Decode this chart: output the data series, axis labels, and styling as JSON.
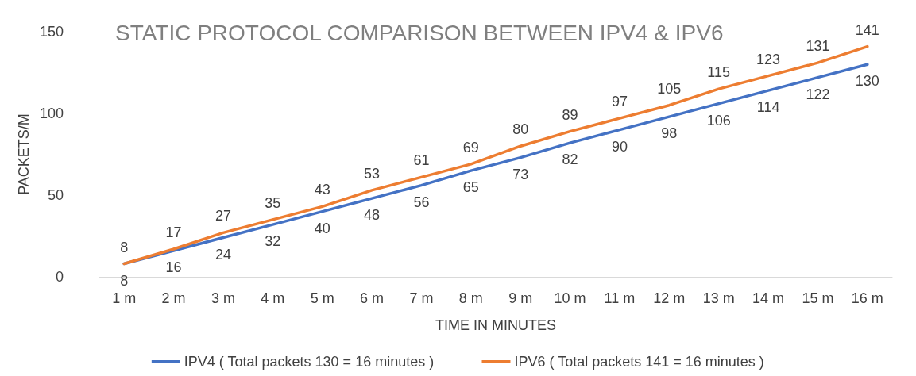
{
  "chart_data": {
    "type": "line",
    "title": "STATIC PROTOCOL COMPARISON BETWEEN IPV4 & IPV6",
    "xlabel": "TIME IN MINUTES",
    "ylabel": "PACKETS/M",
    "categories": [
      "1 m",
      "2 m",
      "3 m",
      "4 m",
      "5 m",
      "6 m",
      "7 m",
      "8 m",
      "9 m",
      "10 m",
      "11 m",
      "12 m",
      "13 m",
      "14 m",
      "15 m",
      "16 m"
    ],
    "series": [
      {
        "name": "IPV4 ( Total packets 130 = 16 minutes )",
        "color": "#4472c4",
        "values": [
          8,
          16,
          24,
          32,
          40,
          48,
          56,
          65,
          73,
          82,
          90,
          98,
          106,
          114,
          122,
          130
        ]
      },
      {
        "name": "IPV6 ( Total packets 141 = 16 minutes )",
        "color": "#ed7d31",
        "values": [
          8,
          17,
          27,
          35,
          43,
          53,
          61,
          69,
          80,
          89,
          97,
          105,
          115,
          123,
          131,
          141
        ]
      }
    ],
    "ylim": [
      0,
      150
    ],
    "yticks": [
      0,
      50,
      100,
      150
    ],
    "grid": false,
    "legend": "bottom",
    "marker": "none",
    "line_style": "solid",
    "data_labels": true
  }
}
